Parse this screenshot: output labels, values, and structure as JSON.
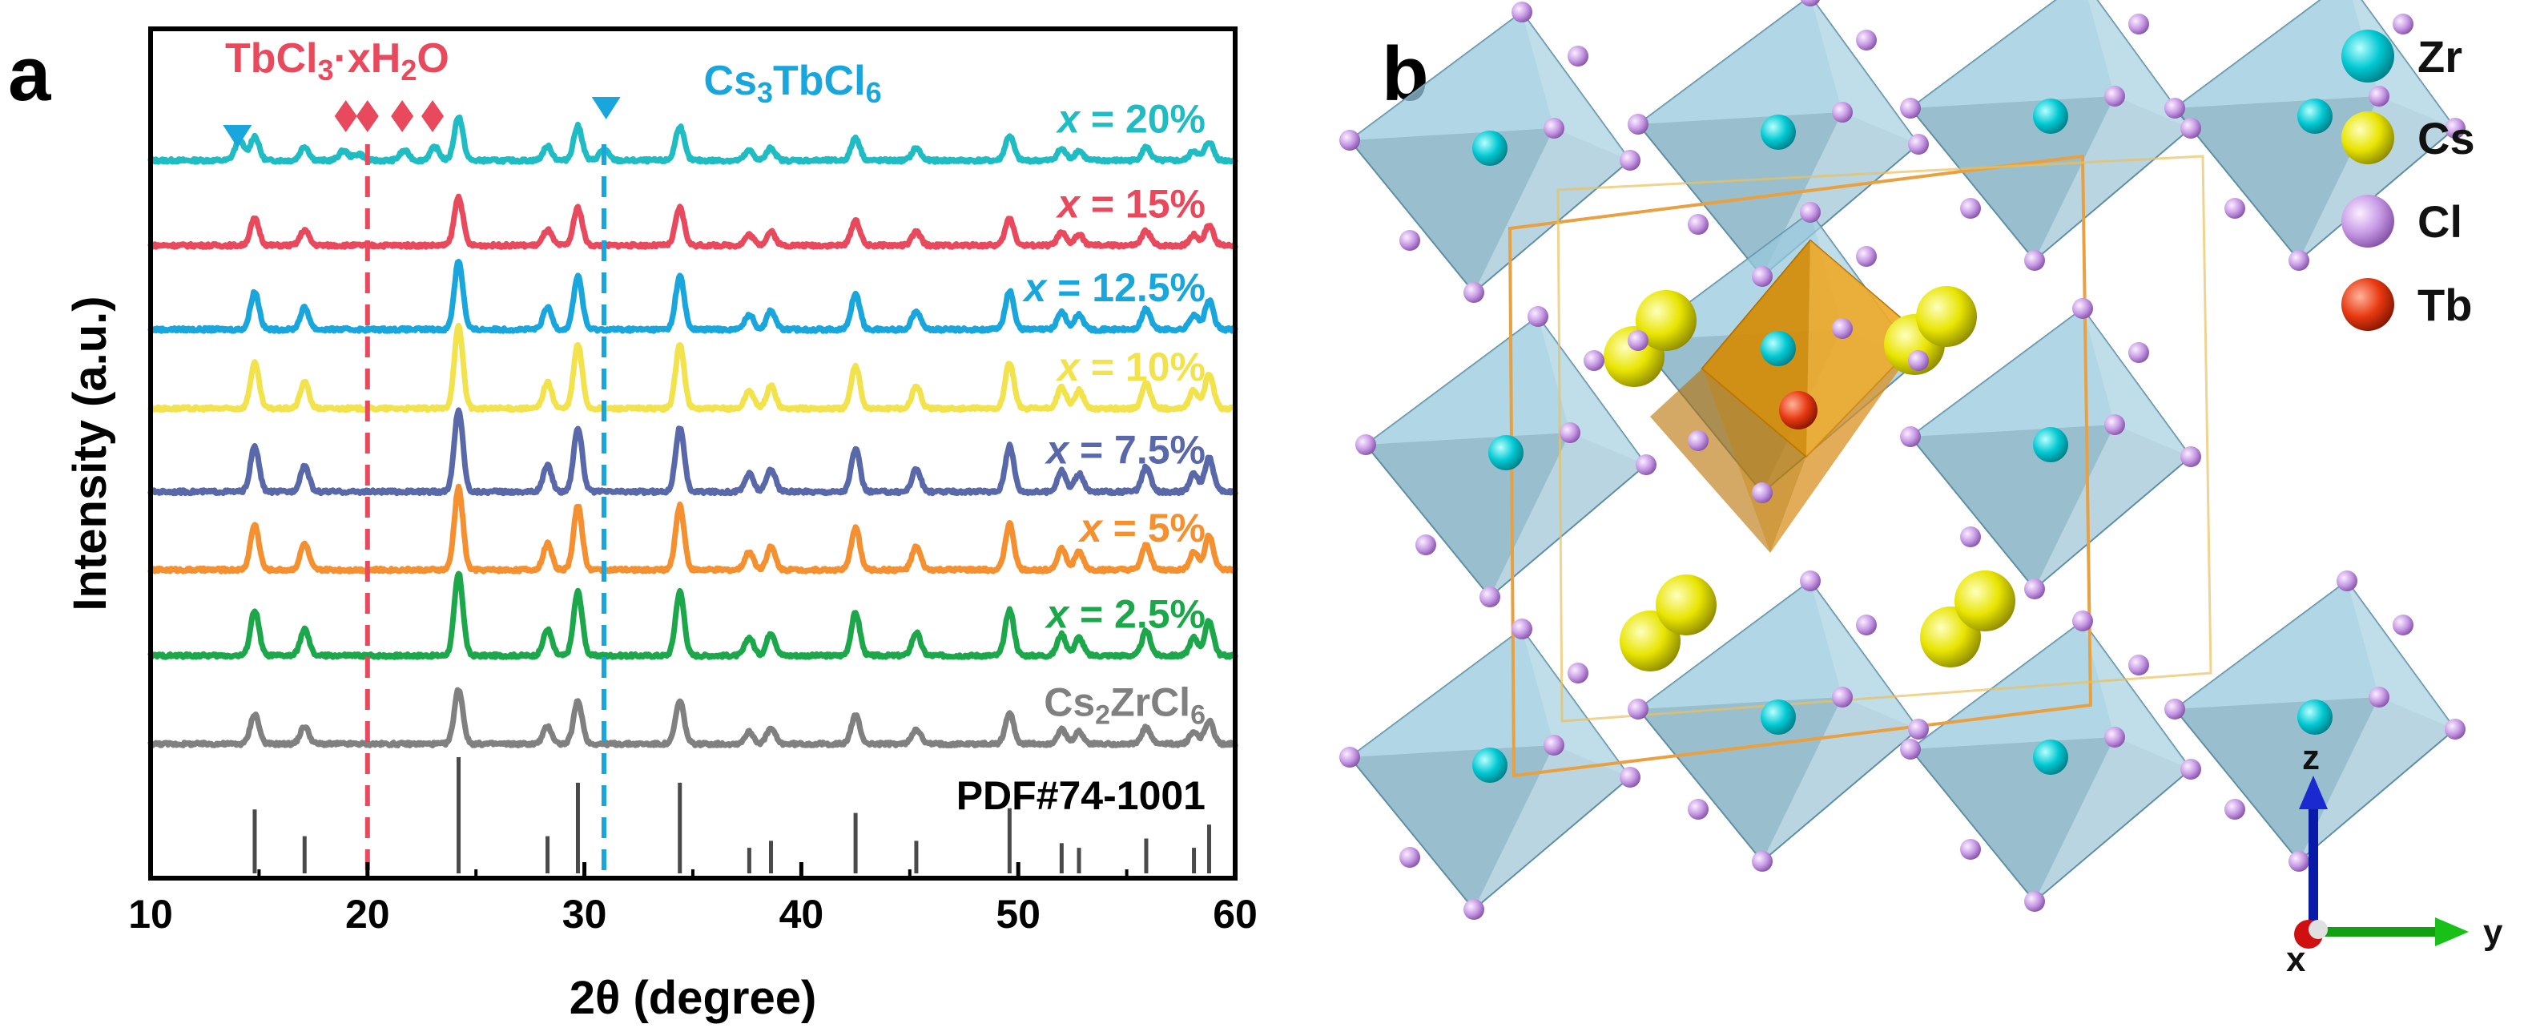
{
  "panel_a": {
    "letter": "a",
    "xlabel": "2θ (degree)",
    "ylabel": "Intensity (a.u.)"
  },
  "panel_b": {
    "letter": "b",
    "legend": [
      {
        "label": "Zr",
        "color": "#00c8d2"
      },
      {
        "label": "Cs",
        "color": "#e8e400"
      },
      {
        "label": "Cl",
        "color": "#c89be6"
      },
      {
        "label": "Tb",
        "color": "#e83a12"
      }
    ],
    "axes": [
      {
        "label": "z",
        "color": "#0a1aa8"
      },
      {
        "label": "y",
        "color": "#10a010"
      },
      {
        "label": "x",
        "color": "#d01010"
      }
    ]
  },
  "chart_data": {
    "type": "line",
    "title": "",
    "xlabel": "2θ (degree)",
    "ylabel": "Intensity (a.u.)",
    "xlim": [
      10,
      60
    ],
    "xticks": [
      10,
      20,
      30,
      40,
      50,
      60
    ],
    "yticks_shown": false,
    "annotations": [
      {
        "text": "TbCl3·xH2O",
        "x": 20.0,
        "color": "#e8495c",
        "marker": "diamond",
        "marker_positions": [
          19.0,
          20.0,
          21.6,
          23.0
        ]
      },
      {
        "text": "Cs3TbCl6",
        "x": 30.9,
        "color": "#18a6dc",
        "marker": "triangle-down",
        "marker_positions": [
          14.0,
          31.0
        ]
      }
    ],
    "reference": {
      "name": "PDF#74-1001",
      "color": "#4a4a4a",
      "peaks": [
        {
          "x": 14.8,
          "h": 0.55
        },
        {
          "x": 17.1,
          "h": 0.32
        },
        {
          "x": 24.2,
          "h": 1.0
        },
        {
          "x": 28.3,
          "h": 0.32
        },
        {
          "x": 29.7,
          "h": 0.78
        },
        {
          "x": 34.4,
          "h": 0.78
        },
        {
          "x": 37.6,
          "h": 0.22
        },
        {
          "x": 38.6,
          "h": 0.28
        },
        {
          "x": 42.5,
          "h": 0.52
        },
        {
          "x": 45.3,
          "h": 0.28
        },
        {
          "x": 49.6,
          "h": 0.56
        },
        {
          "x": 52.0,
          "h": 0.26
        },
        {
          "x": 52.8,
          "h": 0.22
        },
        {
          "x": 55.9,
          "h": 0.3
        },
        {
          "x": 58.1,
          "h": 0.22
        },
        {
          "x": 58.8,
          "h": 0.42
        }
      ]
    },
    "series": [
      {
        "name": "x = 20%",
        "prefix": "x",
        "suffix": " = 20%",
        "color": "#20bcc4",
        "baseline_frac": 0.845,
        "scale": 0.5,
        "impurity": true
      },
      {
        "name": "x = 15%",
        "prefix": "x",
        "suffix": " = 15%",
        "color": "#e8495c",
        "baseline_frac": 0.745,
        "scale": 0.55,
        "impurity": false
      },
      {
        "name": "x = 12.5%",
        "prefix": "x",
        "suffix": " = 12.5%",
        "color": "#18a6dc",
        "baseline_frac": 0.646,
        "scale": 0.78,
        "impurity": false
      },
      {
        "name": "x = 10%",
        "prefix": "x",
        "suffix": " = 10%",
        "color": "#f2e24c",
        "baseline_frac": 0.553,
        "scale": 0.93,
        "impurity": false
      },
      {
        "name": "x = 7.5%",
        "prefix": "x",
        "suffix": " = 7.5%",
        "color": "#5868a8",
        "baseline_frac": 0.455,
        "scale": 0.93,
        "impurity": false
      },
      {
        "name": "x = 5%",
        "prefix": "x",
        "suffix": " = 5%",
        "color": "#f49030",
        "baseline_frac": 0.363,
        "scale": 0.93,
        "impurity": false
      },
      {
        "name": "x = 2.5%",
        "prefix": "x",
        "suffix": " = 2.5%",
        "color": "#1ca84a",
        "baseline_frac": 0.262,
        "scale": 0.93,
        "impurity": false
      },
      {
        "name": "Cs2ZrCl6",
        "prefix": "",
        "suffix": "Cs2ZrCl6",
        "color": "#808080",
        "baseline_frac": 0.158,
        "scale": 0.62,
        "impurity": false
      }
    ]
  }
}
